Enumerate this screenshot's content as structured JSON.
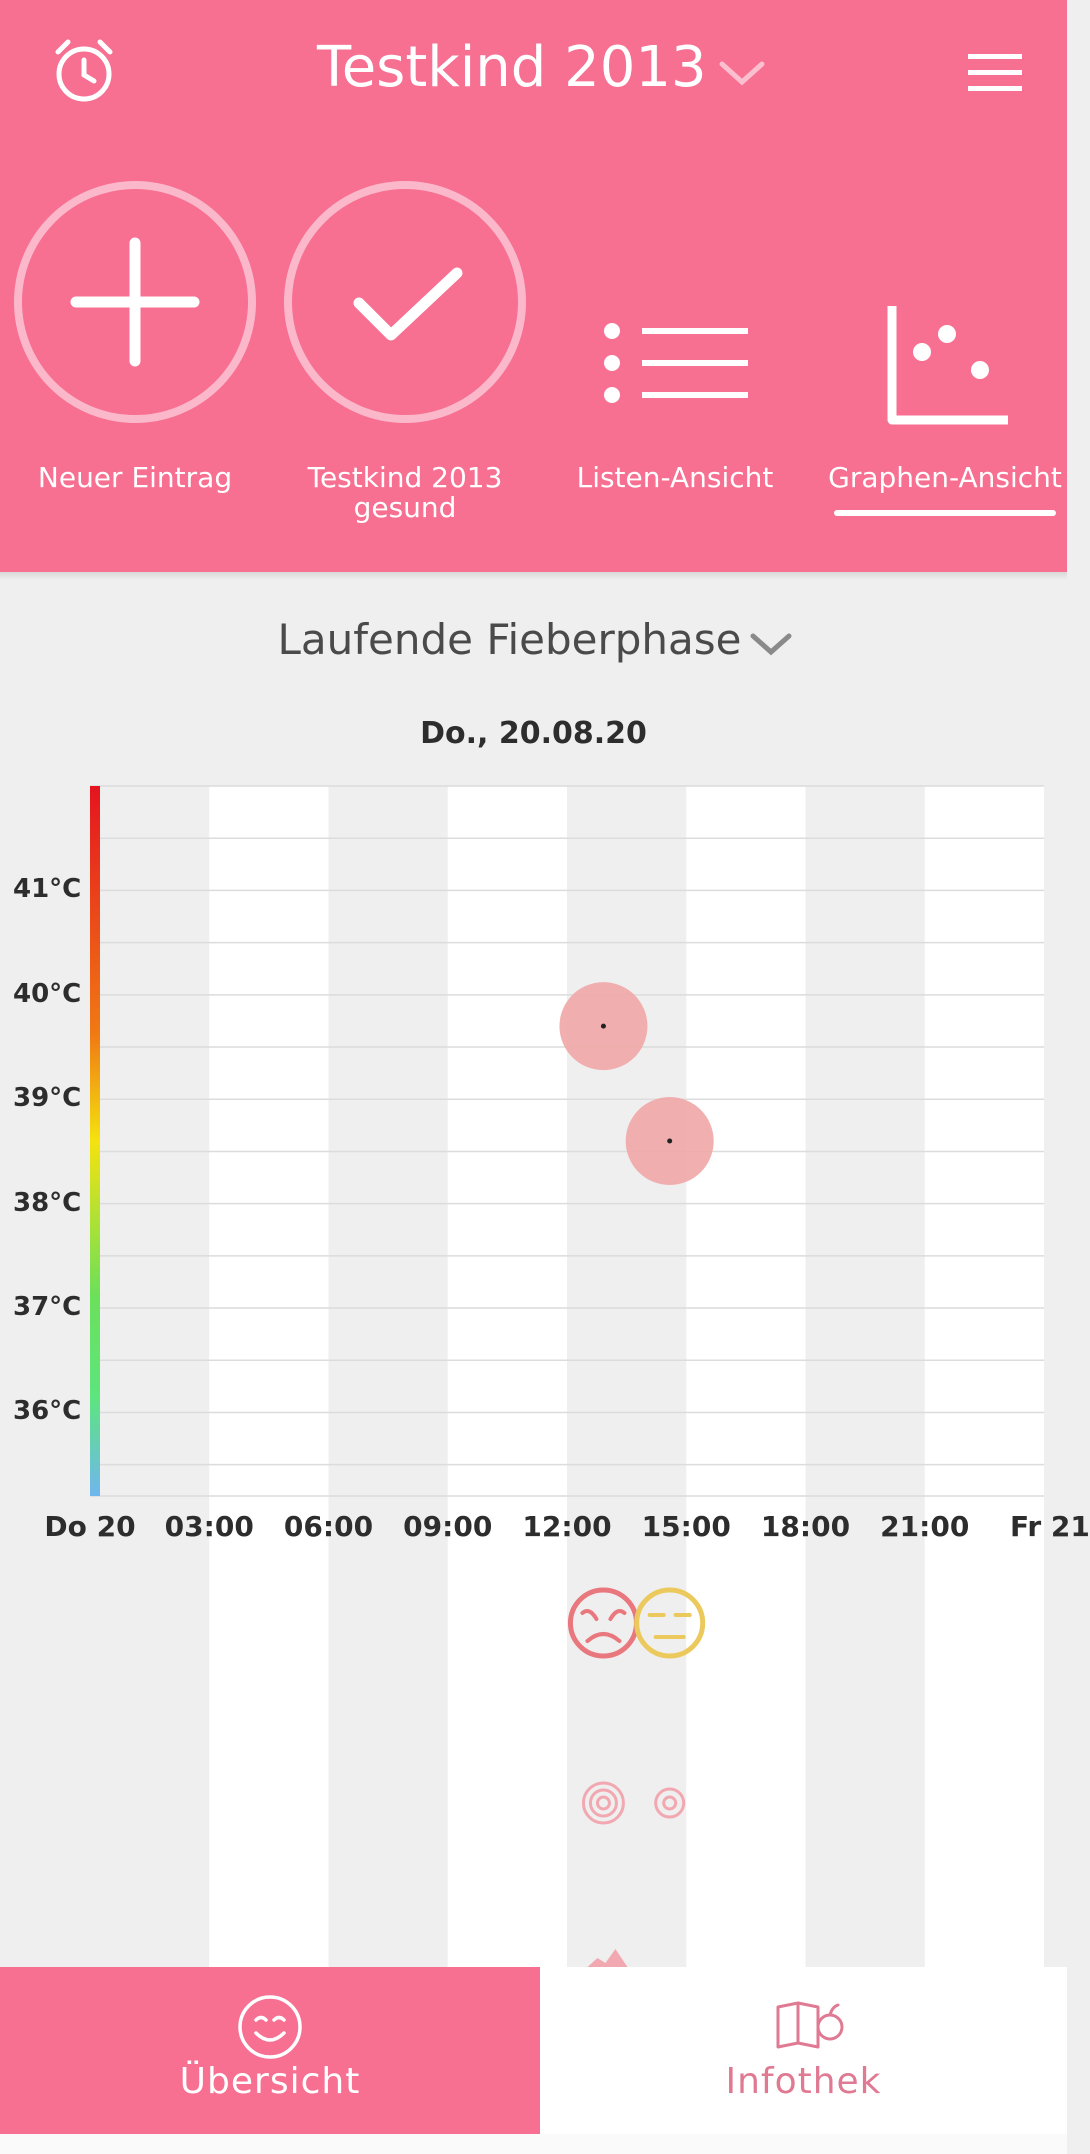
{
  "header": {
    "title": "Testkind 2013",
    "alarm_icon": "alarm-clock-icon",
    "menu_icon": "hamburger-menu-icon",
    "color": "#f76f91"
  },
  "actions": [
    {
      "label": "Neuer Eintrag",
      "icon": "plus-circle-icon"
    },
    {
      "label_line1": "Testkind 2013",
      "label_line2": "gesund",
      "icon": "check-circle-icon"
    },
    {
      "label": "Listen-Ansicht",
      "icon": "list-icon"
    },
    {
      "label": "Graphen-Ansicht",
      "icon": "scatter-graph-icon",
      "active": true
    }
  ],
  "phase": {
    "label": "Laufende Fieberphase"
  },
  "chart_data": {
    "type": "scatter",
    "title": "Do., 20.08.20",
    "x_ticks": [
      "Do 20",
      "03:00",
      "06:00",
      "09:00",
      "12:00",
      "15:00",
      "18:00",
      "21:00",
      "Fr 21"
    ],
    "y_ticks": [
      "36°C",
      "37°C",
      "38°C",
      "39°C",
      "40°C",
      "41°C"
    ],
    "ylim": [
      35.2,
      42.0
    ],
    "xlim": [
      "00:00",
      "24:00"
    ],
    "grid": true,
    "series": [
      {
        "x": [
          "12:55",
          "14:35"
        ],
        "y": [
          39.7,
          38.6
        ],
        "color": "#f0a7a6"
      }
    ],
    "mood_markers": [
      {
        "x": "12:55",
        "mood": "sad",
        "color": "#e9777e"
      },
      {
        "x": "14:35",
        "mood": "neutral",
        "color": "#ecc95c"
      }
    ],
    "symptom_markers": [
      {
        "x": "12:55",
        "icon": "concentric-rings-large-icon"
      },
      {
        "x": "14:35",
        "icon": "concentric-rings-small-icon"
      }
    ]
  },
  "bottom_nav": [
    {
      "label": "Übersicht",
      "icon": "smiley-face-icon",
      "active": true
    },
    {
      "label": "Infothek",
      "icon": "book-apple-icon",
      "active": false
    }
  ]
}
